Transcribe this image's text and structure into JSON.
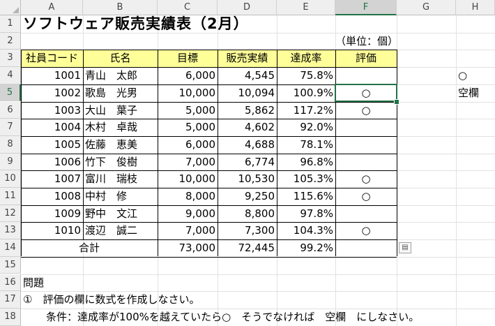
{
  "columns": [
    "A",
    "B",
    "C",
    "D",
    "E",
    "F",
    "G",
    "H"
  ],
  "rows": [
    "1",
    "2",
    "3",
    "4",
    "5",
    "6",
    "7",
    "8",
    "9",
    "10",
    "11",
    "12",
    "13",
    "14",
    "15",
    "16",
    "17",
    "18"
  ],
  "title": "ソフトウェア販売実績表（2月）",
  "unit_note": "（単位：個）",
  "headers": [
    "社員コード",
    "氏名",
    "目標",
    "販売実績",
    "達成率",
    "評価"
  ],
  "records": [
    {
      "code": "1001",
      "name": "青山　太郎",
      "target": "6,000",
      "sales": "4,545",
      "rate": "75.8%",
      "eval": ""
    },
    {
      "code": "1002",
      "name": "歌島　光男",
      "target": "10,000",
      "sales": "10,094",
      "rate": "100.9%",
      "eval": "○"
    },
    {
      "code": "1003",
      "name": "大山　葉子",
      "target": "5,000",
      "sales": "5,862",
      "rate": "117.2%",
      "eval": "○"
    },
    {
      "code": "1004",
      "name": "木村　卓哉",
      "target": "5,000",
      "sales": "4,602",
      "rate": "92.0%",
      "eval": ""
    },
    {
      "code": "1005",
      "name": "佐藤　恵美",
      "target": "6,000",
      "sales": "4,688",
      "rate": "78.1%",
      "eval": ""
    },
    {
      "code": "1006",
      "name": "竹下　俊樹",
      "target": "7,000",
      "sales": "6,774",
      "rate": "96.8%",
      "eval": ""
    },
    {
      "code": "1007",
      "name": "富川　瑞枝",
      "target": "10,000",
      "sales": "10,530",
      "rate": "105.3%",
      "eval": "○"
    },
    {
      "code": "1008",
      "name": "中村　修",
      "target": "8,000",
      "sales": "9,250",
      "rate": "115.6%",
      "eval": "○"
    },
    {
      "code": "1009",
      "name": "野中　文江",
      "target": "9,000",
      "sales": "8,800",
      "rate": "97.8%",
      "eval": ""
    },
    {
      "code": "1010",
      "name": "渡辺　誠二",
      "target": "7,000",
      "sales": "7,300",
      "rate": "104.3%",
      "eval": "○"
    }
  ],
  "total": {
    "label": "合計",
    "target": "73,000",
    "sales": "72,445",
    "rate": "99.2%"
  },
  "side_values": {
    "h4": "○",
    "h5": "空欄"
  },
  "problem": {
    "heading": "問題",
    "line1": "①　評価の欄に数式を作成しなさい。",
    "line2": "条件：達成率が100%を越えていたら○　そうでなければ　空欄　にしなさい。"
  },
  "active_cell": "F5",
  "paste_icon": "paste-options-icon"
}
